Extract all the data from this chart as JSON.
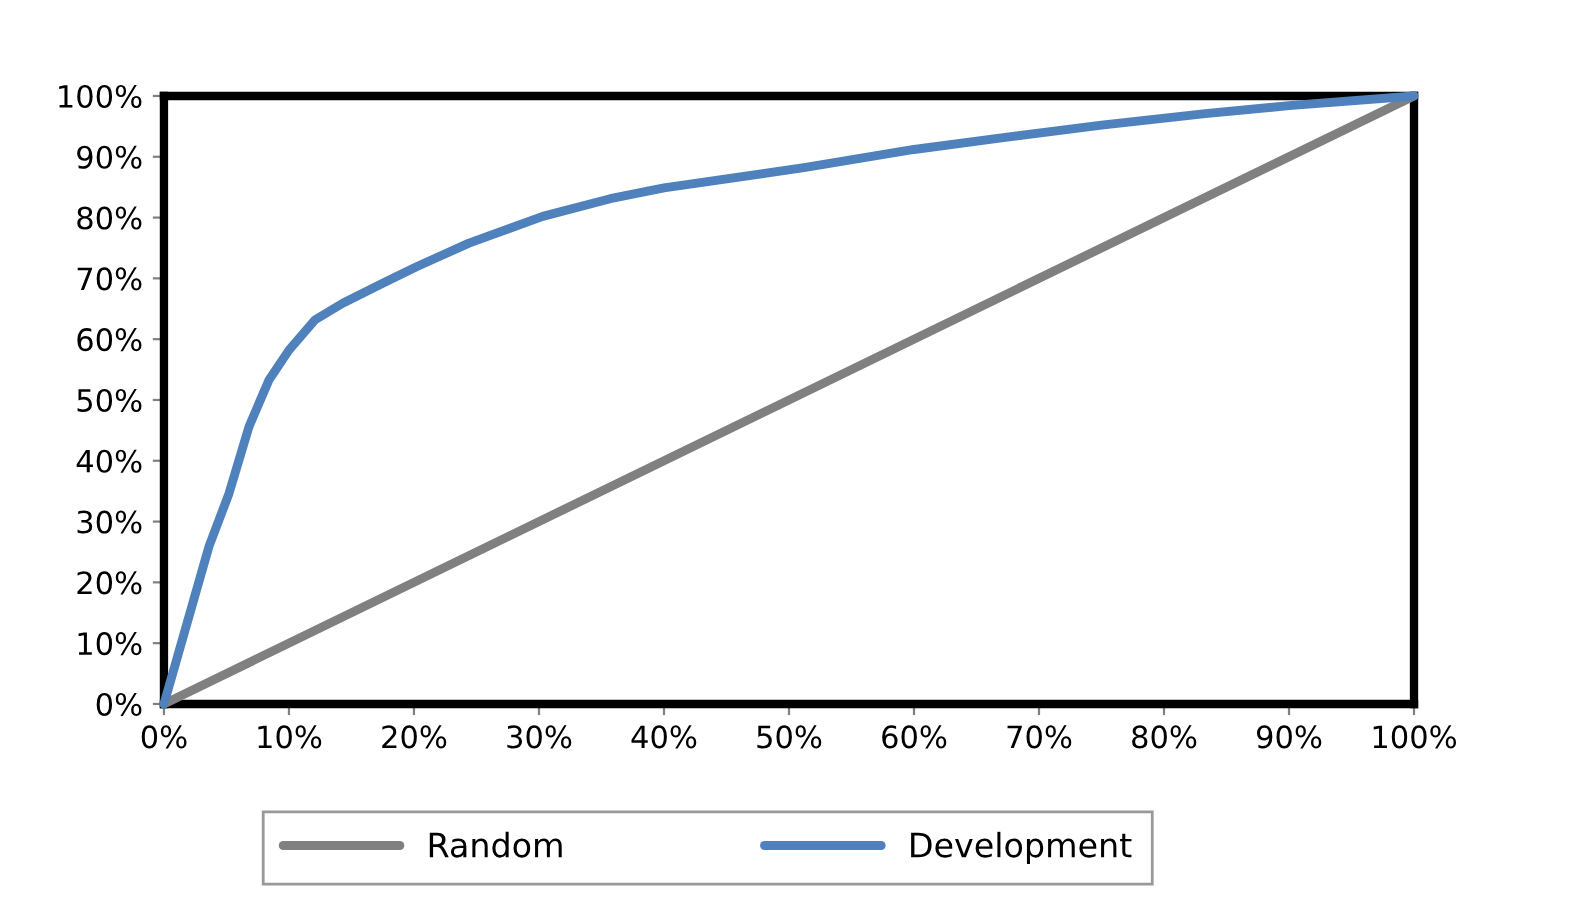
{
  "chart_data": {
    "type": "line",
    "x": [
      0,
      3.6,
      5.2,
      6.8,
      8.4,
      10,
      12.1,
      14.3,
      17.5,
      20.2,
      24.4,
      30.3,
      35.7,
      40,
      51.2,
      60,
      67.3,
      75,
      83.3,
      90,
      100
    ],
    "series": [
      {
        "name": "Random",
        "color": "#808080",
        "x": [
          0,
          100
        ],
        "values": [
          0,
          100
        ]
      },
      {
        "name": "Development",
        "color": "#4f81bd",
        "values": [
          0,
          25.9,
          34.6,
          45.6,
          53.3,
          58.2,
          63.2,
          65.9,
          69.2,
          71.9,
          75.8,
          80.2,
          83.1,
          84.9,
          88.2,
          91.2,
          93.2,
          95.2,
          97.1,
          98.4,
          100
        ]
      }
    ],
    "xlim": [
      0,
      100
    ],
    "ylim": [
      0,
      100
    ],
    "xticks": [
      {
        "value": 0,
        "label": "0%"
      },
      {
        "value": 10,
        "label": "10%"
      },
      {
        "value": 20,
        "label": "20%"
      },
      {
        "value": 30,
        "label": "30%"
      },
      {
        "value": 40,
        "label": "40%"
      },
      {
        "value": 50,
        "label": "50%"
      },
      {
        "value": 60,
        "label": "60%"
      },
      {
        "value": 70,
        "label": "70%"
      },
      {
        "value": 80,
        "label": "80%"
      },
      {
        "value": 90,
        "label": "90%"
      },
      {
        "value": 100,
        "label": "100%"
      }
    ],
    "yticks": [
      {
        "value": 0,
        "label": "0%"
      },
      {
        "value": 10,
        "label": "10%"
      },
      {
        "value": 20,
        "label": "20%"
      },
      {
        "value": 30,
        "label": "30%"
      },
      {
        "value": 40,
        "label": "40%"
      },
      {
        "value": 50,
        "label": "50%"
      },
      {
        "value": 60,
        "label": "60%"
      },
      {
        "value": 70,
        "label": "70%"
      },
      {
        "value": 80,
        "label": "80%"
      },
      {
        "value": 90,
        "label": "90%"
      },
      {
        "value": 100,
        "label": "100%"
      }
    ],
    "grid": false,
    "legend": "bottom",
    "marker": "none",
    "line_style": "solid"
  }
}
